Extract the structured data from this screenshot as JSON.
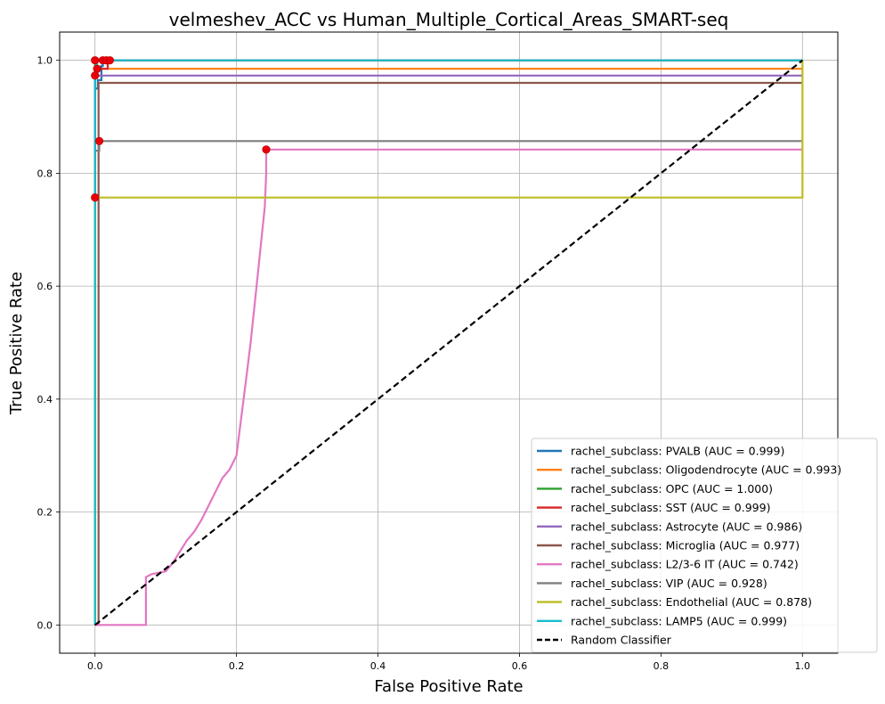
{
  "chart_data": {
    "type": "line",
    "title": "velmeshev_ACC vs Human_Multiple_Cortical_Areas_SMART-seq",
    "xlabel": "False Positive Rate",
    "ylabel": "True Positive Rate",
    "xlim": [
      -0.05,
      1.05
    ],
    "ylim": [
      -0.05,
      1.05
    ],
    "xticks": [
      0.0,
      0.2,
      0.4,
      0.6,
      0.8,
      1.0
    ],
    "yticks": [
      0.0,
      0.2,
      0.4,
      0.6,
      0.8,
      1.0
    ],
    "xtick_labels": [
      "0.0",
      "0.2",
      "0.4",
      "0.6",
      "0.8",
      "1.0"
    ],
    "ytick_labels": [
      "0.0",
      "0.2",
      "0.4",
      "0.6",
      "0.8",
      "1.0"
    ],
    "grid": true,
    "legend_position": "bottom-right",
    "series": [
      {
        "name": "rachel_subclass: PVALB (AUC = 0.999)",
        "color": "#1f77b4",
        "x": [
          0,
          0,
          0.004,
          0.004,
          0.009,
          0.009,
          0.011,
          0.011,
          1
        ],
        "y": [
          0,
          0.95,
          0.95,
          0.965,
          0.965,
          0.99,
          0.99,
          1.0,
          1.0
        ],
        "markers": [
          [
            0.011,
            1.0
          ]
        ]
      },
      {
        "name": "rachel_subclass: Oligodendrocyte (AUC = 0.993)",
        "color": "#ff7f0e",
        "x": [
          0,
          0,
          0.003,
          0.003,
          1
        ],
        "y": [
          0,
          0.97,
          0.97,
          0.985,
          0.985
        ],
        "markers": [
          [
            0.003,
            0.985
          ]
        ]
      },
      {
        "name": "rachel_subclass: OPC (AUC = 1.000)",
        "color": "#2ca02c",
        "x": [
          0,
          0,
          1
        ],
        "y": [
          0,
          1.0,
          1.0
        ],
        "markers": [
          [
            0,
            1.0
          ]
        ]
      },
      {
        "name": "rachel_subclass: SST (AUC = 0.999)",
        "color": "#d62728",
        "x": [
          0,
          0,
          0.003,
          0.003,
          0.012,
          0.012,
          0.018,
          0.018,
          0.022,
          0.022,
          1
        ],
        "y": [
          0,
          0.975,
          0.975,
          0.985,
          0.985,
          0.985,
          0.985,
          1.0,
          1.0,
          1.0,
          1.0
        ],
        "markers": [
          [
            0.016,
            1.0
          ],
          [
            0.021,
            1.0
          ]
        ]
      },
      {
        "name": "rachel_subclass: Astrocyte (AUC = 0.986)",
        "color": "#9467bd",
        "x": [
          0,
          0,
          1
        ],
        "y": [
          0,
          0.973,
          0.973
        ],
        "markers": [
          [
            0,
            0.973
          ]
        ]
      },
      {
        "name": "rachel_subclass: Microglia (AUC = 0.977)",
        "color": "#8c564b",
        "x": [
          0,
          0.005,
          0.005,
          1
        ],
        "y": [
          0,
          0,
          0.96,
          0.96
        ],
        "markers": []
      },
      {
        "name": "rachel_subclass: L2/3-6 IT (AUC = 0.742)",
        "color": "#e377c2",
        "x": [
          0,
          0.072,
          0.072,
          0.08,
          0.1,
          0.11,
          0.12,
          0.13,
          0.14,
          0.15,
          0.16,
          0.17,
          0.18,
          0.19,
          0.2,
          0.205,
          0.21,
          0.215,
          0.22,
          0.225,
          0.23,
          0.235,
          0.24,
          0.242,
          0.242,
          1
        ],
        "y": [
          0,
          0,
          0.085,
          0.09,
          0.095,
          0.11,
          0.13,
          0.15,
          0.165,
          0.185,
          0.21,
          0.235,
          0.26,
          0.275,
          0.3,
          0.35,
          0.4,
          0.45,
          0.5,
          0.56,
          0.62,
          0.68,
          0.74,
          0.8,
          0.842,
          0.842
        ],
        "markers": [
          [
            0.242,
            0.842
          ]
        ]
      },
      {
        "name": "rachel_subclass: VIP (AUC = 0.928)",
        "color": "#7f7f7f",
        "x": [
          0,
          0,
          0.006,
          0.006,
          1
        ],
        "y": [
          0,
          0.84,
          0.84,
          0.857,
          0.857
        ],
        "markers": [
          [
            0.006,
            0.857
          ]
        ]
      },
      {
        "name": "rachel_subclass: Endothelial (AUC = 0.878)",
        "color": "#bcbd22",
        "x": [
          0,
          0,
          1,
          1
        ],
        "y": [
          0,
          0.757,
          0.757,
          1.0
        ],
        "markers": [
          [
            0,
            0.757
          ]
        ]
      },
      {
        "name": "rachel_subclass: LAMP5 (AUC = 0.999)",
        "color": "#17becf",
        "x": [
          0,
          0,
          0.003,
          0.003,
          1
        ],
        "y": [
          0,
          0.99,
          0.99,
          1.0,
          1.0
        ],
        "markers": []
      }
    ],
    "reference_line": {
      "name": "Random Classifier",
      "color": "#000000",
      "x": [
        0,
        1
      ],
      "y": [
        0,
        1
      ]
    }
  }
}
